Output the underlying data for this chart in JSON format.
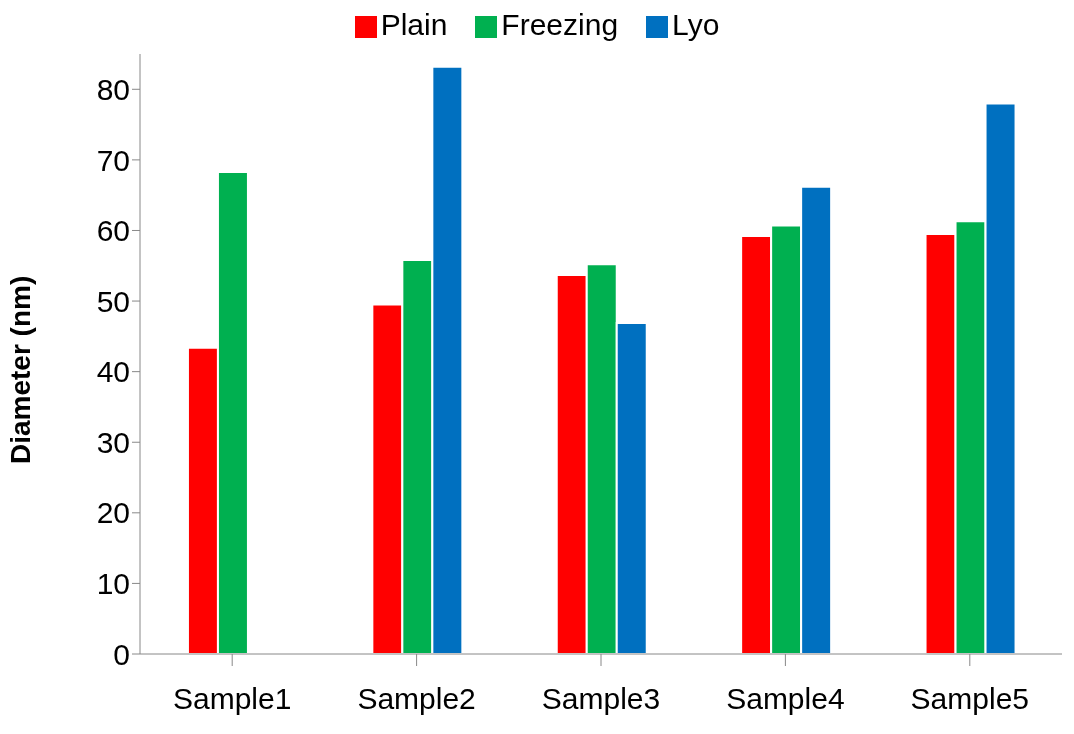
{
  "chart_data": {
    "type": "bar",
    "ylabel": "Diameter (nm)",
    "categories": [
      "Sample1",
      "Sample2",
      "Sample3",
      "Sample4",
      "Sample5"
    ],
    "series": [
      {
        "name": "Plain",
        "color": "#ff0000",
        "values": [
          43.4,
          49.5,
          53.7,
          59.2,
          59.5
        ]
      },
      {
        "name": "Freezing",
        "color": "#00b050",
        "values": [
          68.3,
          55.8,
          55.2,
          60.7,
          61.3
        ]
      },
      {
        "name": "Lyo",
        "color": "#0070c0",
        "values": [
          null,
          83.2,
          46.9,
          66.2,
          78.0
        ]
      }
    ],
    "ylim": [
      0,
      85
    ],
    "yticks": [
      0,
      10,
      20,
      30,
      40,
      50,
      60,
      70,
      80
    ],
    "grid": false,
    "legend": "top"
  }
}
